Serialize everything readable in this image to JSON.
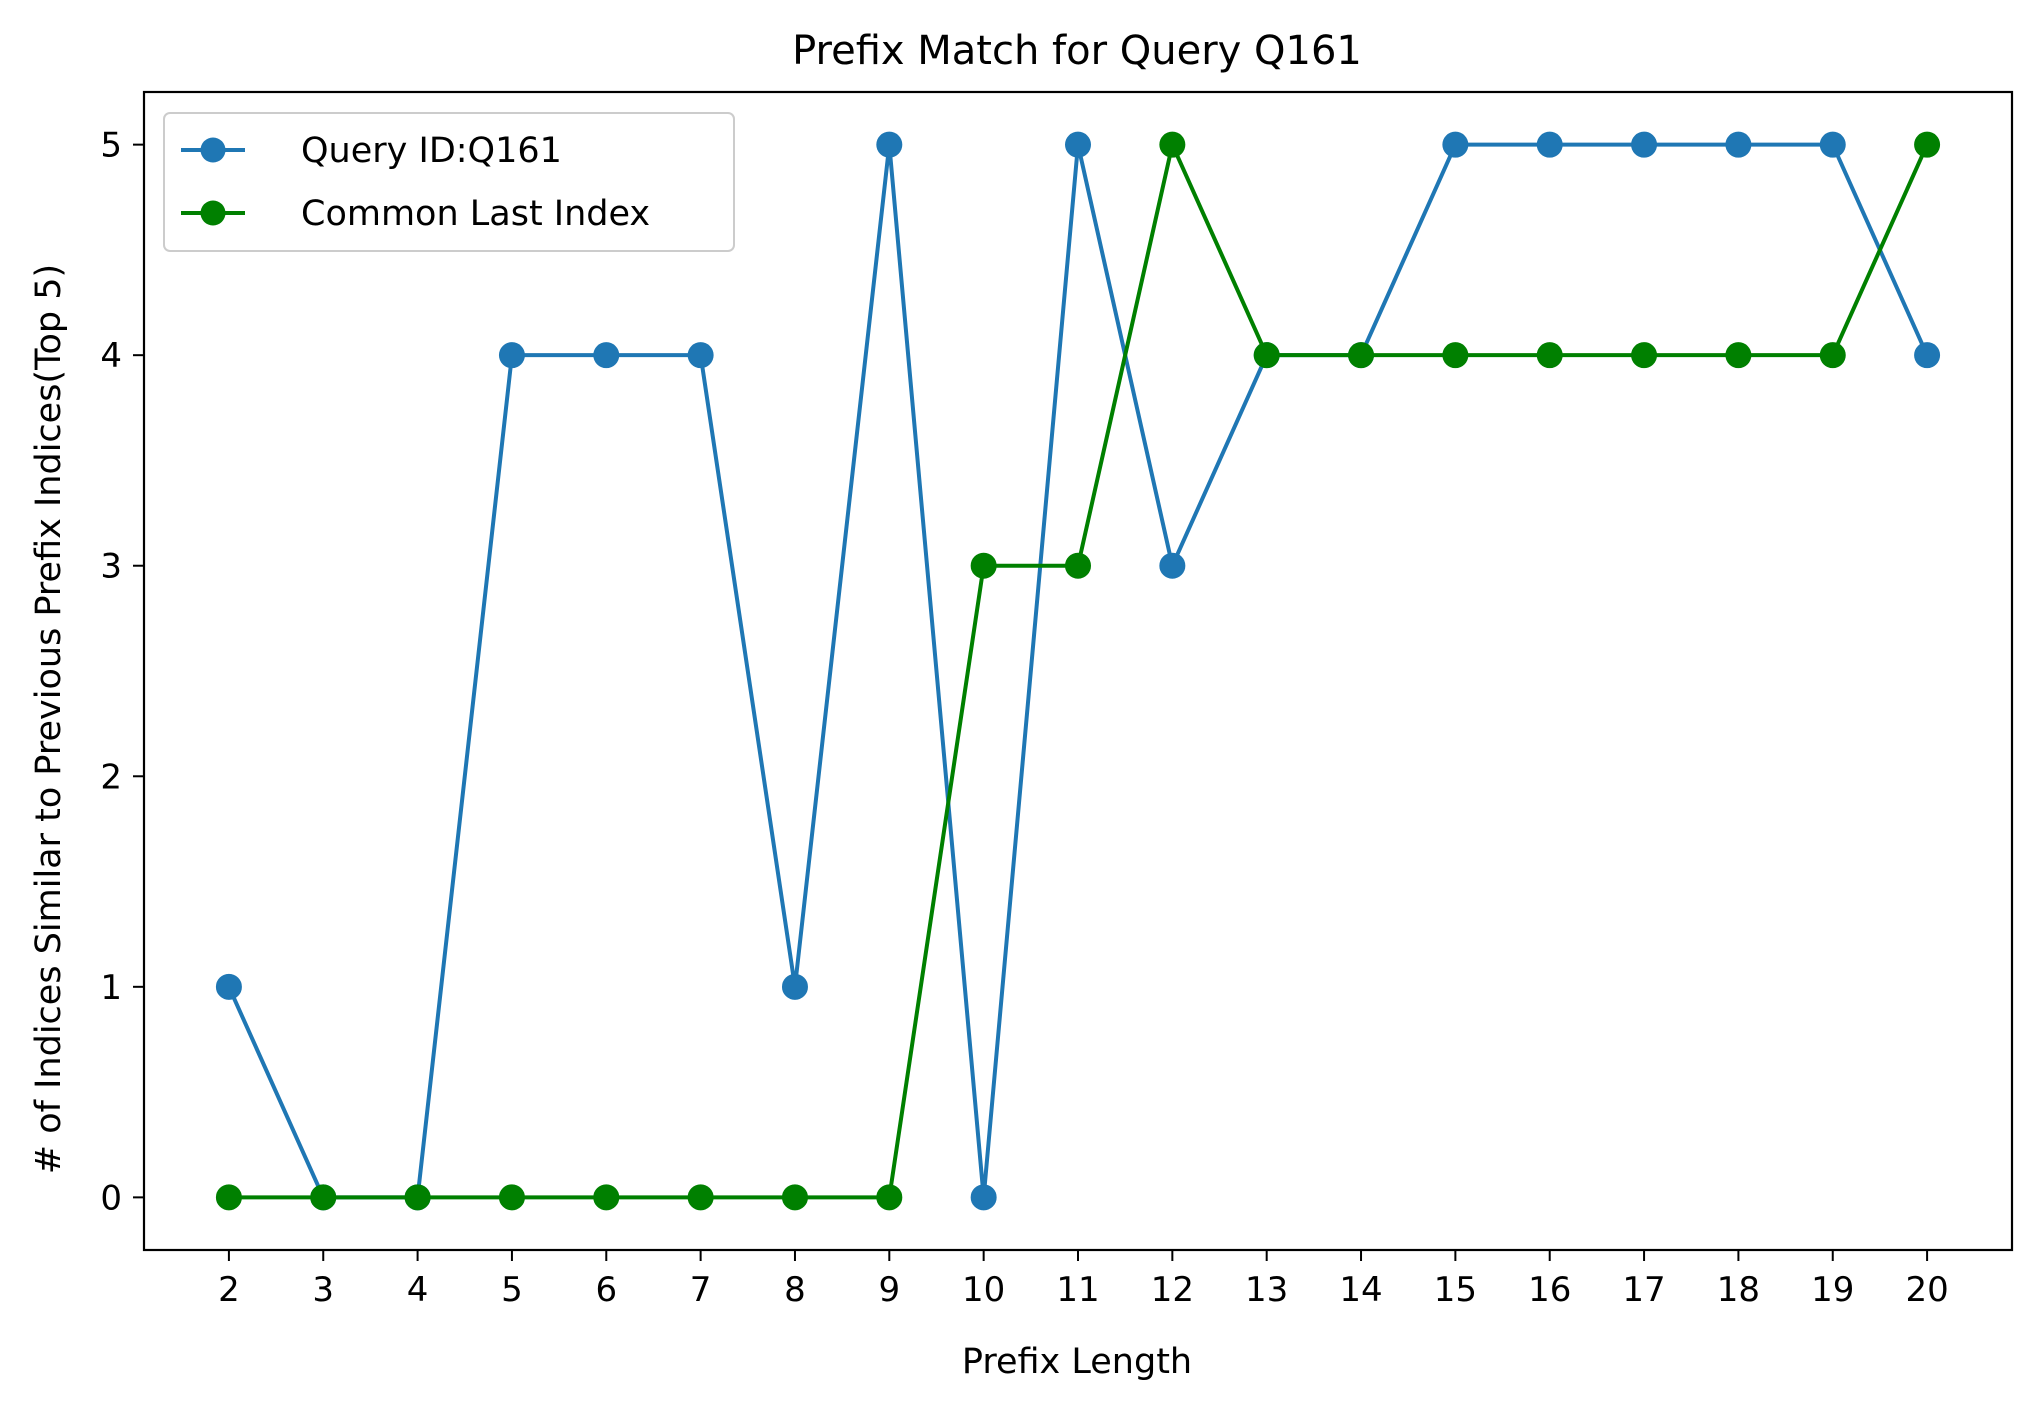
{
  "chart_data": {
    "type": "line",
    "title": "Prefix Match for Query Q161",
    "xlabel": "Prefix Length",
    "ylabel": "# of Indices Similar to Previous Prefix Indices(Top 5)",
    "x": [
      2,
      3,
      4,
      5,
      6,
      7,
      8,
      9,
      10,
      11,
      12,
      13,
      14,
      15,
      16,
      17,
      18,
      19,
      20
    ],
    "x_tick_labels": [
      "2",
      "3",
      "4",
      "5",
      "6",
      "7",
      "8",
      "9",
      "10",
      "11",
      "12",
      "13",
      "14",
      "15",
      "16",
      "17",
      "18",
      "19",
      "20"
    ],
    "y_ticks": [
      0,
      1,
      2,
      3,
      4,
      5
    ],
    "y_tick_labels": [
      "0",
      "1",
      "2",
      "3",
      "4",
      "5"
    ],
    "xlim": [
      1.1,
      20.9
    ],
    "ylim": [
      -0.25,
      5.25
    ],
    "grid": false,
    "legend_position": "top-left",
    "series": [
      {
        "name": "Query ID:Q161",
        "color": "#1f77b4",
        "marker": "circle",
        "values": [
          1,
          0,
          0,
          4,
          4,
          4,
          1,
          5,
          0,
          5,
          3,
          4,
          4,
          5,
          5,
          5,
          5,
          5,
          4
        ]
      },
      {
        "name": "Common Last Index",
        "color": "#008000",
        "marker": "circle",
        "values": [
          0,
          0,
          0,
          0,
          0,
          0,
          0,
          0,
          3,
          3,
          5,
          4,
          4,
          4,
          4,
          4,
          4,
          4,
          5
        ]
      }
    ]
  }
}
